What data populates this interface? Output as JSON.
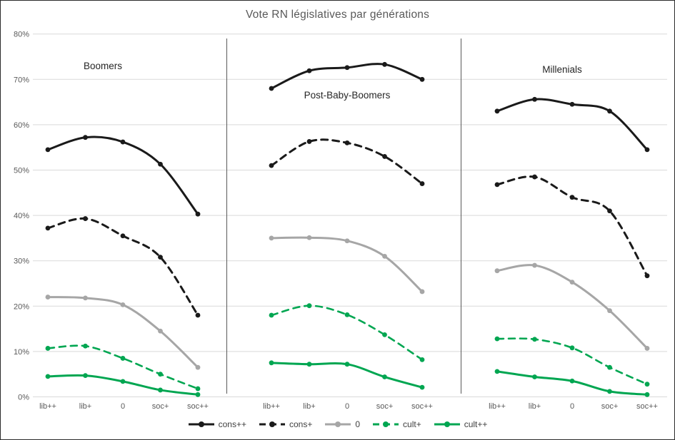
{
  "chart_data": {
    "type": "line",
    "title": "Vote RN législatives par générations",
    "x_categories": [
      "lib++",
      "lib+",
      "0",
      "soc+",
      "soc++"
    ],
    "y_ticks": [
      "0%",
      "10%",
      "20%",
      "30%",
      "40%",
      "50%",
      "60%",
      "70%",
      "80%"
    ],
    "ylim": [
      0,
      80
    ],
    "grid": true,
    "legend_position": "bottom",
    "series_styles": [
      {
        "name": "cons++",
        "color": "#1a1a1a",
        "dashed": false,
        "width": 3
      },
      {
        "name": "cons+",
        "color": "#1a1a1a",
        "dashed": true,
        "width": 3
      },
      {
        "name": "0",
        "color": "#a6a6a6",
        "dashed": false,
        "width": 3
      },
      {
        "name": "cult+",
        "color": "#00a651",
        "dashed": true,
        "width": 2.6
      },
      {
        "name": "cult++",
        "color": "#00a651",
        "dashed": false,
        "width": 3
      }
    ],
    "legend": [
      "cons++",
      "cons+",
      "0",
      "cult+",
      "cult++"
    ],
    "panels": [
      {
        "label": "Boomers",
        "series": [
          {
            "name": "cons++",
            "values": [
              54.5,
              57.2,
              56.2,
              51.3,
              40.3
            ]
          },
          {
            "name": "cons+",
            "values": [
              37.2,
              39.3,
              35.5,
              30.8,
              18.0
            ]
          },
          {
            "name": "0",
            "values": [
              22.0,
              21.8,
              20.3,
              14.5,
              6.5
            ]
          },
          {
            "name": "cult+",
            "values": [
              10.7,
              11.2,
              8.5,
              5.0,
              1.8
            ]
          },
          {
            "name": "cult++",
            "values": [
              4.5,
              4.7,
              3.4,
              1.5,
              0.5
            ]
          }
        ]
      },
      {
        "label": "Post-Baby-Boomers",
        "series": [
          {
            "name": "cons++",
            "values": [
              68.0,
              71.9,
              72.6,
              73.3,
              70.0
            ]
          },
          {
            "name": "cons+",
            "values": [
              51.0,
              56.3,
              56.0,
              53.0,
              47.0
            ]
          },
          {
            "name": "0",
            "values": [
              35.0,
              35.1,
              34.4,
              31.0,
              23.2
            ]
          },
          {
            "name": "cult+",
            "values": [
              18.0,
              20.1,
              18.1,
              13.7,
              8.2
            ]
          },
          {
            "name": "cult++",
            "values": [
              7.5,
              7.2,
              7.2,
              4.4,
              2.1
            ]
          }
        ]
      },
      {
        "label": "Millenials",
        "series": [
          {
            "name": "cons++",
            "values": [
              63.0,
              65.6,
              64.5,
              63.0,
              54.5
            ]
          },
          {
            "name": "cons+",
            "values": [
              46.8,
              48.5,
              44.0,
              41.0,
              26.7
            ]
          },
          {
            "name": "0",
            "values": [
              27.8,
              29.0,
              25.3,
              19.0,
              10.7
            ]
          },
          {
            "name": "cult+",
            "values": [
              12.8,
              12.7,
              10.8,
              6.5,
              2.8
            ]
          },
          {
            "name": "cult++",
            "values": [
              5.6,
              4.4,
              3.5,
              1.2,
              0.5
            ]
          }
        ]
      }
    ],
    "colors": {
      "grid": "#d9d9d9",
      "divider": "#5a5a5a",
      "axis_text": "#595959",
      "panel_label_text": "#262626",
      "title_text": "#595959"
    }
  }
}
